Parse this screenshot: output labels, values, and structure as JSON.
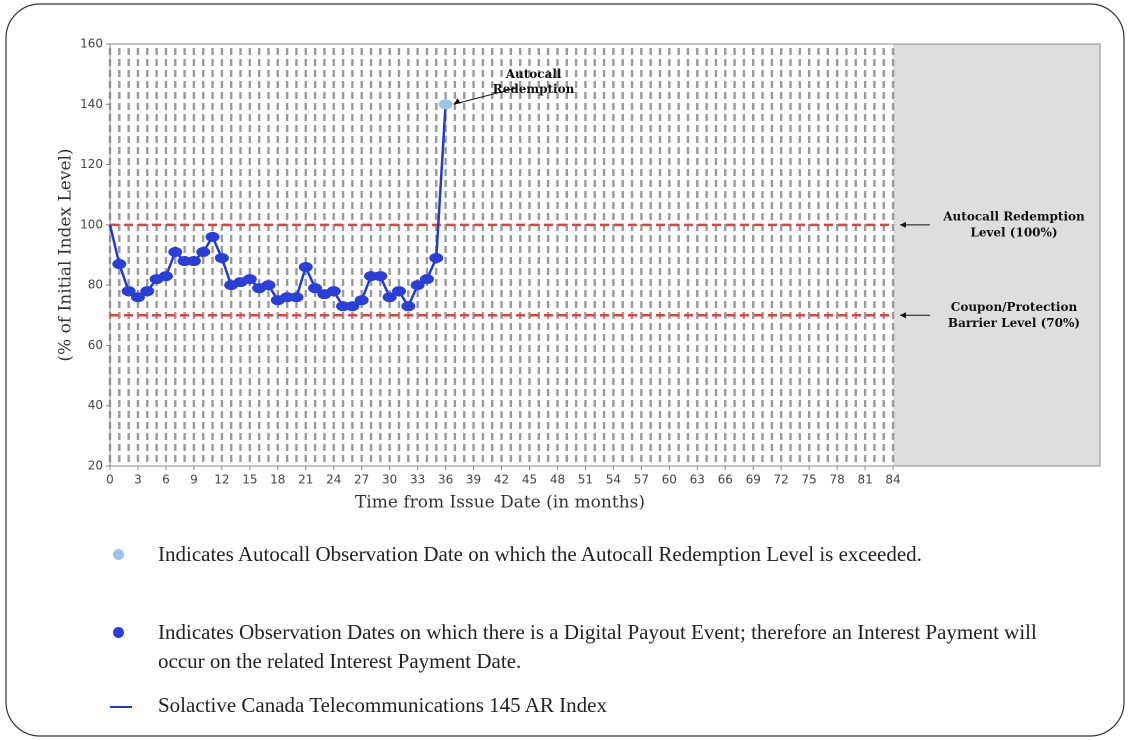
{
  "chart_data": {
    "type": "line",
    "x_label": "Time from Issue Date (in months)",
    "y_label": "(% of Initial Index Level)",
    "x": [
      0,
      1,
      2,
      3,
      4,
      5,
      6,
      7,
      8,
      9,
      10,
      11,
      12,
      13,
      14,
      15,
      16,
      17,
      18,
      19,
      20,
      21,
      22,
      23,
      24,
      25,
      26,
      27,
      28,
      29,
      30,
      31,
      32,
      33,
      34,
      35,
      36
    ],
    "series": [
      {
        "name": "Solactive Canada Telecommunications 145 AR Index",
        "color": "#1f3ad6",
        "values": [
          100,
          87,
          78,
          76,
          78,
          82,
          83,
          91,
          88,
          88,
          91,
          96,
          89,
          80,
          81,
          82,
          79,
          80,
          75,
          76,
          76,
          86,
          79,
          77,
          78,
          73,
          73,
          75,
          83,
          83,
          76,
          78,
          73,
          80,
          82,
          89,
          140
        ],
        "marker_colors": [
          null,
          "#2a3fd8",
          "#2a3fd8",
          "#2a3fd8",
          "#2a3fd8",
          "#2a3fd8",
          "#2a3fd8",
          "#2a3fd8",
          "#2a3fd8",
          "#2a3fd8",
          "#2a3fd8",
          "#2a3fd8",
          "#2a3fd8",
          "#2a3fd8",
          "#2a3fd8",
          "#2a3fd8",
          "#2a3fd8",
          "#2a3fd8",
          "#2a3fd8",
          "#2a3fd8",
          "#2a3fd8",
          "#2a3fd8",
          "#2a3fd8",
          "#2a3fd8",
          "#2a3fd8",
          "#2a3fd8",
          "#2a3fd8",
          "#2a3fd8",
          "#2a3fd8",
          "#2a3fd8",
          "#2a3fd8",
          "#2a3fd8",
          "#2a3fd8",
          "#2a3fd8",
          "#2a3fd8",
          "#2a3fd8",
          "#9cc3ee"
        ]
      }
    ],
    "xlim": [
      0,
      106.2
    ],
    "ylim": [
      20,
      160
    ],
    "xticks": [
      0,
      3,
      6,
      9,
      12,
      15,
      18,
      21,
      24,
      27,
      30,
      33,
      36,
      39,
      42,
      45,
      48,
      51,
      54,
      57,
      60,
      63,
      66,
      69,
      72,
      75,
      78,
      81,
      84
    ],
    "yticks": [
      20,
      40,
      60,
      80,
      100,
      120,
      140,
      160
    ],
    "xgrid": [
      0,
      1,
      2,
      3,
      4,
      5,
      6,
      7,
      8,
      9,
      10,
      11,
      12,
      13,
      14,
      15,
      16,
      17,
      18,
      19,
      20,
      21,
      22,
      23,
      24,
      25,
      26,
      27,
      28,
      29,
      30,
      31,
      32,
      33,
      34,
      35,
      36,
      37,
      38,
      39,
      40,
      41,
      42,
      43,
      44,
      45,
      46,
      47,
      48,
      49,
      50,
      51,
      52,
      53,
      54,
      55,
      56,
      57,
      58,
      59,
      60,
      61,
      62,
      63,
      64,
      65,
      66,
      67,
      68,
      69,
      70,
      71,
      72,
      73,
      74,
      75,
      76,
      77,
      78,
      79,
      80,
      81,
      82,
      83,
      84
    ],
    "grid_color": "#9a9a9a",
    "shaded_from": 84,
    "shade_color": "#dedede",
    "hlines": [
      {
        "value": 100,
        "color": "#e34040",
        "label": [
          "Autocall Redemption",
          "Level (100%)"
        ]
      },
      {
        "value": 70,
        "color": "#e34040",
        "label": [
          "Coupon/Protection",
          "Barrier Level (70%)"
        ]
      }
    ],
    "annotations": [
      {
        "x": 36,
        "y": 140,
        "text": [
          "Autocall",
          "Redemption"
        ]
      }
    ],
    "notes": [
      {
        "color": "#9cc3ee",
        "text": "Indicates Autocall Observation Date on which the Autocall Redemption Level is exceeded."
      },
      {
        "color": "#2a3fd8",
        "text": "Indicates Observation Dates on which there is a Digital Payout Event; therefore an Interest Payment will occur on the related Interest Payment Date."
      }
    ]
  }
}
